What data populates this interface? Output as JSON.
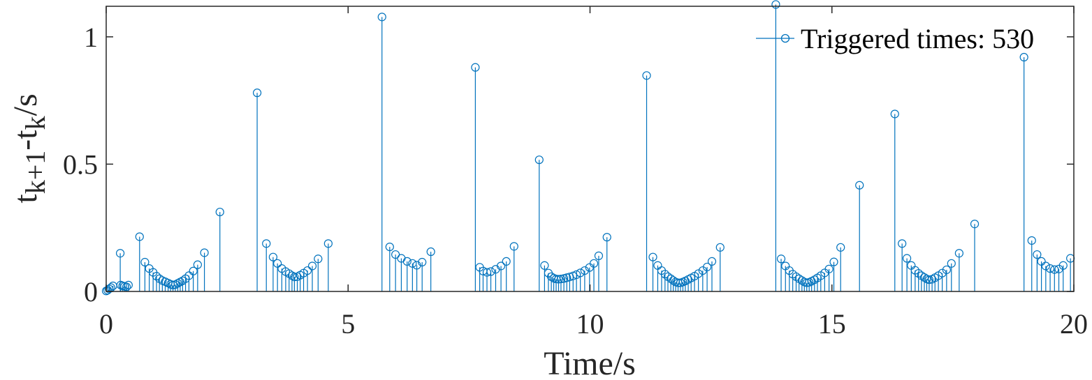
{
  "chart_data": {
    "type": "stem",
    "xlabel": "Time/s",
    "ylabel": {
      "base": "t",
      "sub1": "k+1",
      "mid": "-t",
      "sub2": "k",
      "suffix": "/s"
    },
    "xlim": [
      0,
      20
    ],
    "ylim": [
      0,
      1.12
    ],
    "xticks": [
      0,
      5,
      10,
      15,
      20
    ],
    "xtick_labels": [
      "0",
      "5",
      "10",
      "15",
      "20"
    ],
    "yticks": [
      0,
      0.5,
      1
    ],
    "ytick_labels": [
      "0",
      "0.5",
      "1"
    ],
    "grid": false,
    "legend": {
      "position": "top-right",
      "entries": [
        "Triggered times: 530"
      ]
    },
    "series": [
      {
        "name": "Triggered times: 530",
        "color": "#0072BD",
        "marker": "circle-open",
        "points": [
          [
            0.0,
            0.002
          ],
          [
            0.03,
            0.005
          ],
          [
            0.06,
            0.01
          ],
          [
            0.1,
            0.015
          ],
          [
            0.14,
            0.022
          ],
          [
            0.29,
            0.15
          ],
          [
            0.3,
            0.025
          ],
          [
            0.34,
            0.022
          ],
          [
            0.38,
            0.02
          ],
          [
            0.42,
            0.018
          ],
          [
            0.46,
            0.025
          ],
          [
            0.69,
            0.215
          ],
          [
            0.8,
            0.115
          ],
          [
            0.89,
            0.09
          ],
          [
            0.97,
            0.075
          ],
          [
            1.04,
            0.06
          ],
          [
            1.1,
            0.05
          ],
          [
            1.16,
            0.043
          ],
          [
            1.22,
            0.038
          ],
          [
            1.28,
            0.033
          ],
          [
            1.33,
            0.028
          ],
          [
            1.38,
            0.025
          ],
          [
            1.43,
            0.027
          ],
          [
            1.48,
            0.032
          ],
          [
            1.53,
            0.037
          ],
          [
            1.58,
            0.042
          ],
          [
            1.64,
            0.05
          ],
          [
            1.71,
            0.062
          ],
          [
            1.8,
            0.08
          ],
          [
            1.89,
            0.105
          ],
          [
            2.03,
            0.152
          ],
          [
            2.35,
            0.312
          ],
          [
            3.12,
            0.78
          ],
          [
            3.31,
            0.188
          ],
          [
            3.45,
            0.135
          ],
          [
            3.54,
            0.11
          ],
          [
            3.63,
            0.09
          ],
          [
            3.71,
            0.078
          ],
          [
            3.78,
            0.07
          ],
          [
            3.84,
            0.062
          ],
          [
            3.89,
            0.057
          ],
          [
            3.95,
            0.058
          ],
          [
            4.01,
            0.064
          ],
          [
            4.08,
            0.072
          ],
          [
            4.16,
            0.082
          ],
          [
            4.26,
            0.1
          ],
          [
            4.38,
            0.128
          ],
          [
            4.59,
            0.188
          ],
          [
            5.7,
            1.078
          ],
          [
            5.86,
            0.175
          ],
          [
            5.98,
            0.145
          ],
          [
            6.1,
            0.13
          ],
          [
            6.22,
            0.118
          ],
          [
            6.33,
            0.11
          ],
          [
            6.42,
            0.103
          ],
          [
            6.53,
            0.115
          ],
          [
            6.71,
            0.156
          ],
          [
            7.63,
            0.88
          ],
          [
            7.72,
            0.095
          ],
          [
            7.79,
            0.08
          ],
          [
            7.87,
            0.075
          ],
          [
            7.95,
            0.078
          ],
          [
            8.05,
            0.087
          ],
          [
            8.16,
            0.1
          ],
          [
            8.27,
            0.118
          ],
          [
            8.43,
            0.177
          ],
          [
            8.95,
            0.517
          ],
          [
            9.06,
            0.102
          ],
          [
            9.14,
            0.072
          ],
          [
            9.2,
            0.058
          ],
          [
            9.25,
            0.052
          ],
          [
            9.3,
            0.049
          ],
          [
            9.35,
            0.048
          ],
          [
            9.4,
            0.049
          ],
          [
            9.46,
            0.051
          ],
          [
            9.52,
            0.054
          ],
          [
            9.58,
            0.057
          ],
          [
            9.65,
            0.061
          ],
          [
            9.72,
            0.066
          ],
          [
            9.8,
            0.073
          ],
          [
            9.89,
            0.082
          ],
          [
            9.99,
            0.094
          ],
          [
            10.08,
            0.11
          ],
          [
            10.18,
            0.14
          ],
          [
            10.35,
            0.213
          ],
          [
            11.17,
            0.848
          ],
          [
            11.3,
            0.135
          ],
          [
            11.4,
            0.102
          ],
          [
            11.48,
            0.082
          ],
          [
            11.55,
            0.068
          ],
          [
            11.61,
            0.058
          ],
          [
            11.67,
            0.05
          ],
          [
            11.72,
            0.043
          ],
          [
            11.77,
            0.037
          ],
          [
            11.82,
            0.034
          ],
          [
            11.87,
            0.034
          ],
          [
            11.92,
            0.037
          ],
          [
            11.97,
            0.041
          ],
          [
            12.03,
            0.047
          ],
          [
            12.09,
            0.053
          ],
          [
            12.16,
            0.06
          ],
          [
            12.24,
            0.07
          ],
          [
            12.33,
            0.082
          ],
          [
            12.42,
            0.096
          ],
          [
            12.52,
            0.118
          ],
          [
            12.69,
            0.173
          ],
          [
            13.84,
            1.127
          ],
          [
            13.95,
            0.128
          ],
          [
            14.04,
            0.1
          ],
          [
            14.12,
            0.082
          ],
          [
            14.19,
            0.068
          ],
          [
            14.26,
            0.058
          ],
          [
            14.32,
            0.05
          ],
          [
            14.38,
            0.043
          ],
          [
            14.43,
            0.037
          ],
          [
            14.48,
            0.034
          ],
          [
            14.53,
            0.036
          ],
          [
            14.58,
            0.04
          ],
          [
            14.64,
            0.046
          ],
          [
            14.7,
            0.053
          ],
          [
            14.77,
            0.062
          ],
          [
            14.85,
            0.073
          ],
          [
            14.94,
            0.088
          ],
          [
            15.04,
            0.116
          ],
          [
            15.18,
            0.173
          ],
          [
            15.57,
            0.417
          ],
          [
            16.3,
            0.697
          ],
          [
            16.45,
            0.188
          ],
          [
            16.55,
            0.13
          ],
          [
            16.64,
            0.102
          ],
          [
            16.72,
            0.083
          ],
          [
            16.79,
            0.071
          ],
          [
            16.85,
            0.062
          ],
          [
            16.91,
            0.055
          ],
          [
            16.96,
            0.049
          ],
          [
            17.01,
            0.046
          ],
          [
            17.07,
            0.048
          ],
          [
            17.13,
            0.054
          ],
          [
            17.2,
            0.062
          ],
          [
            17.28,
            0.072
          ],
          [
            17.37,
            0.085
          ],
          [
            17.47,
            0.11
          ],
          [
            17.63,
            0.15
          ],
          [
            17.95,
            0.265
          ],
          [
            18.97,
            0.92
          ],
          [
            19.13,
            0.2
          ],
          [
            19.24,
            0.145
          ],
          [
            19.33,
            0.118
          ],
          [
            19.42,
            0.1
          ],
          [
            19.51,
            0.09
          ],
          [
            19.6,
            0.086
          ],
          [
            19.69,
            0.088
          ],
          [
            19.78,
            0.102
          ],
          [
            19.93,
            0.13
          ]
        ]
      }
    ]
  }
}
